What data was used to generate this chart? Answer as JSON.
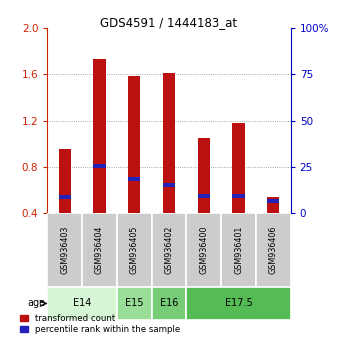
{
  "title": "GDS4591 / 1444183_at",
  "samples": [
    "GSM936403",
    "GSM936404",
    "GSM936405",
    "GSM936402",
    "GSM936400",
    "GSM936401",
    "GSM936406"
  ],
  "red_values": [
    0.95,
    1.73,
    1.59,
    1.61,
    1.05,
    1.18,
    0.54
  ],
  "blue_values": [
    0.535,
    0.805,
    0.695,
    0.645,
    0.545,
    0.545,
    0.5
  ],
  "red_base": 0.4,
  "ylim": [
    0.4,
    2.0
  ],
  "yticks": [
    0.4,
    0.8,
    1.2,
    1.6,
    2.0
  ],
  "y2ticks": [
    0,
    25,
    50,
    75,
    100
  ],
  "y2labels": [
    "0",
    "25",
    "50",
    "75",
    "100%"
  ],
  "age_groups": [
    {
      "label": "E14",
      "start": 0,
      "end": 2,
      "color": "#d5f5d5"
    },
    {
      "label": "E15",
      "start": 2,
      "end": 3,
      "color": "#99dd99"
    },
    {
      "label": "E16",
      "start": 3,
      "end": 4,
      "color": "#77cc77"
    },
    {
      "label": "E17.5",
      "start": 4,
      "end": 7,
      "color": "#55bb55"
    }
  ],
  "bar_width": 0.35,
  "red_color": "#bb1111",
  "blue_color": "#2222bb",
  "grid_color": "#888888",
  "bg_color": "#ffffff",
  "sample_box_color": "#cccccc",
  "legend_red": "transformed count",
  "legend_blue": "percentile rank within the sample",
  "left_tick_color": "#cc2200",
  "right_tick_color": "#0000cc"
}
